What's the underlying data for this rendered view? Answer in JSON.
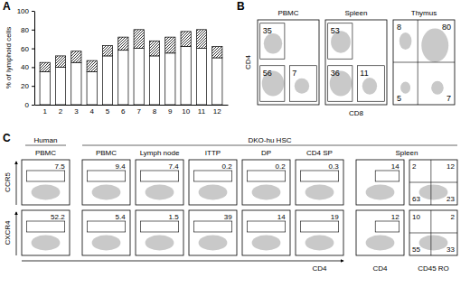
{
  "chart_data": {
    "type": "bar",
    "stacked": true,
    "categories": [
      "1",
      "2",
      "3",
      "4",
      "5",
      "6",
      "7",
      "8",
      "9",
      "10",
      "11",
      "12"
    ],
    "series": [
      {
        "color": "#ffffff",
        "values": [
          35,
          40,
          45,
          35,
          52,
          58,
          60,
          52,
          55,
          62,
          60,
          50
        ]
      },
      {
        "color": "#333333",
        "values": [
          10,
          12,
          12,
          12,
          11,
          14,
          20,
          16,
          17,
          16,
          20,
          12
        ]
      }
    ],
    "y_label": "% of lymphoid cells",
    "ylim": [
      0,
      100
    ],
    "yticks": [
      0,
      20,
      40,
      60,
      80,
      100
    ]
  },
  "figure": {
    "panel_labels": [
      "A",
      "B",
      "C"
    ],
    "panel_b": {
      "y_label": "CD4",
      "x_label": "CD8",
      "plots": [
        {
          "title": "PBMC",
          "quadrants": {
            "upper_left": 35,
            "lower_left": 56,
            "lower_right": 7
          }
        },
        {
          "title": "Spleen",
          "quadrants": {
            "upper_left": 53,
            "lower_left": 36,
            "lower_right": 11
          }
        },
        {
          "title": "Thymus",
          "quadrants": {
            "upper_left": 8,
            "upper_right": 80,
            "lower_left": 5,
            "lower_right": 7
          }
        }
      ]
    },
    "panel_c": {
      "header_human": "Human",
      "header_dko": "DKO-hu HSC",
      "columns": [
        "PBMC",
        "PBMC",
        "Lymph node",
        "ITTP",
        "DP",
        "CD4 SP",
        "Spleen"
      ],
      "x_labels": [
        "CD4",
        "CD4",
        "CD45 RO"
      ],
      "rows": [
        {
          "label": "CCR5",
          "gates": [
            7.5,
            9.4,
            7.4,
            0.2,
            0.2,
            0.3,
            14
          ],
          "quadrants": {
            "upper_left": 2,
            "upper_right": 12,
            "lower_left": 63,
            "lower_right": 23
          }
        },
        {
          "label": "CXCR4",
          "gates": [
            52.2,
            5.4,
            1.5,
            39,
            14,
            19,
            12
          ],
          "quadrants": {
            "upper_left": 10,
            "upper_right": 2,
            "lower_left": 55,
            "lower_right": 33
          }
        }
      ]
    }
  }
}
